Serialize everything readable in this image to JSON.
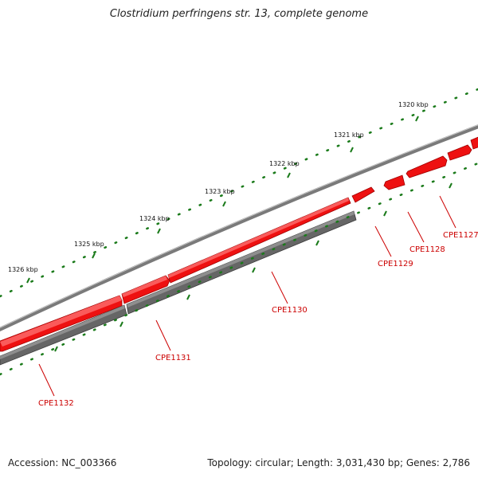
{
  "title": "Clostridium perfringens str. 13, complete genome",
  "footer": {
    "accession": "Accession: NC_003366",
    "summary": "Topology: circular; Length: 3,031,430 bp; Genes: 2,786"
  },
  "scale_labels": [
    "1320 kbp",
    "1321 kbp",
    "1322 kbp",
    "1323 kbp",
    "1324 kbp",
    "1325 kbp",
    "1326 kbp"
  ],
  "genes": [
    {
      "name": "CPE1127",
      "strand": "forward"
    },
    {
      "name": "CPE1128",
      "strand": "forward"
    },
    {
      "name": "CPE1129",
      "strand": "forward"
    },
    {
      "name": "CPE1130",
      "strand": "forward"
    },
    {
      "name": "CPE1131",
      "strand": "forward"
    },
    {
      "name": "CPE1132",
      "strand": "forward"
    }
  ],
  "colors": {
    "backbone": "#7a7a7a",
    "gene_forward": "#ee1111",
    "gene_reverse": "#666666",
    "ticks": "#1a7a1a",
    "label": "#cc0000"
  }
}
